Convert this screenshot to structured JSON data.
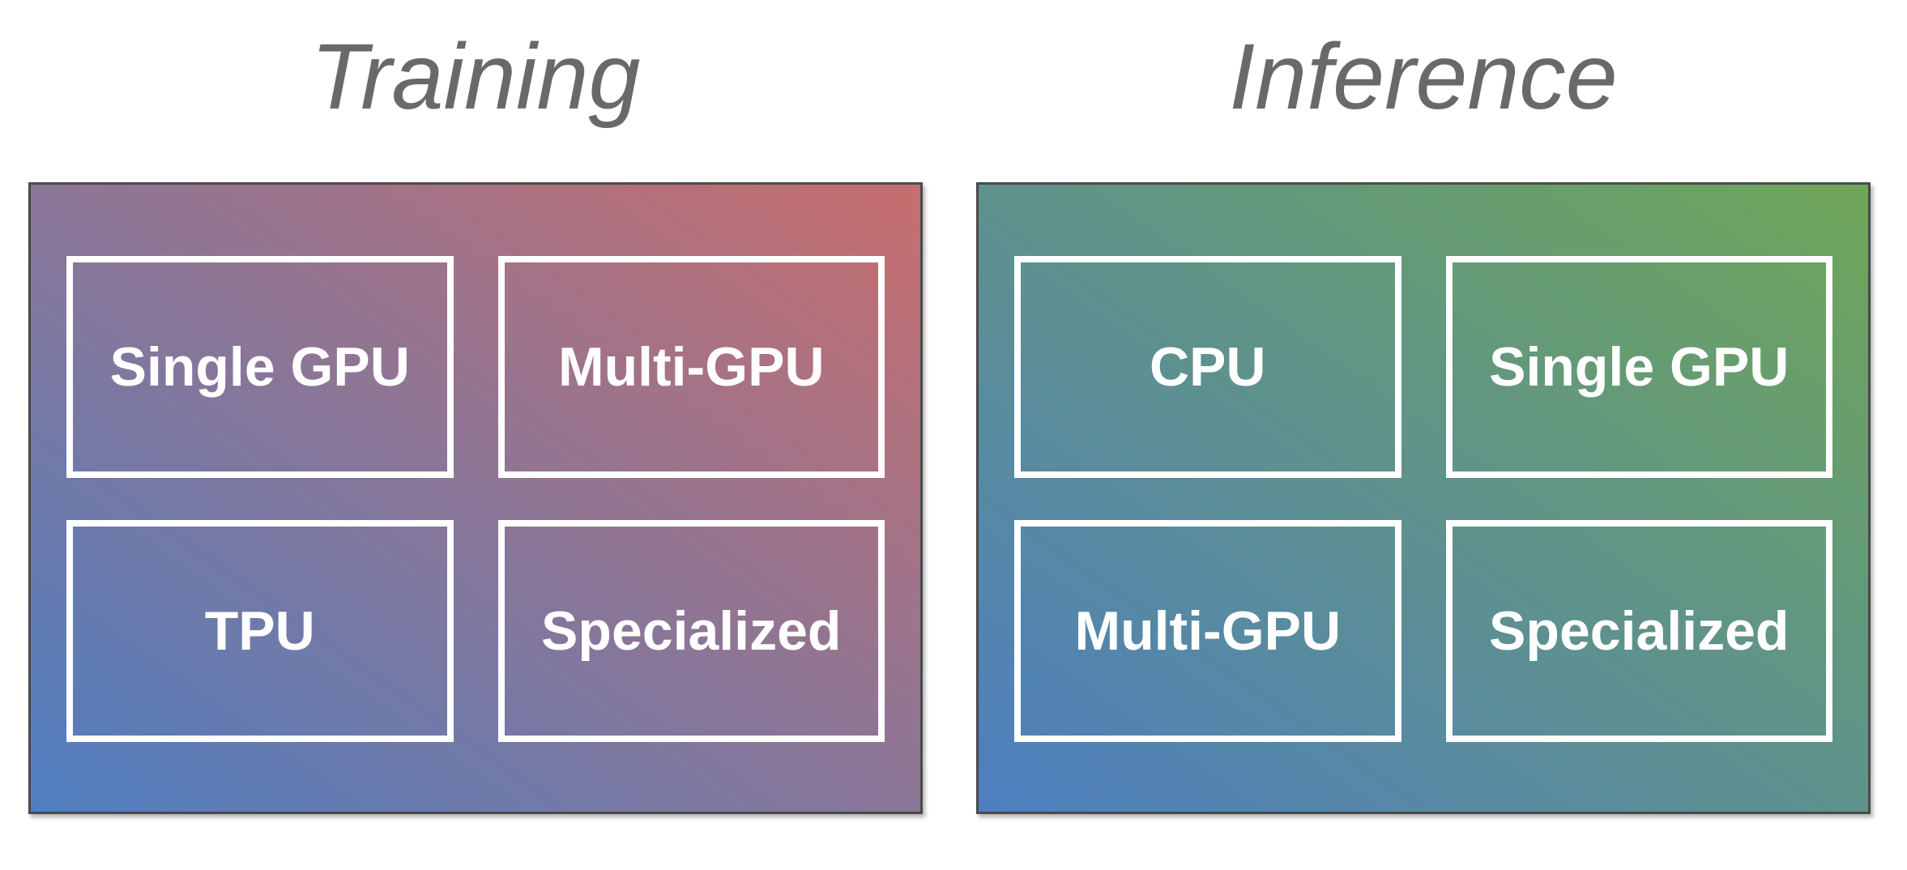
{
  "figure": {
    "description": "Two-panel hardware diagram comparing Training and Inference compute options"
  },
  "panels": [
    {
      "title": "Training",
      "gradient": {
        "from": "#4e7ec0",
        "to": "#c76e6e"
      },
      "boxes": [
        "Single GPU",
        "Multi-GPU",
        "TPU",
        "Specialized"
      ]
    },
    {
      "title": "Inference",
      "gradient": {
        "from": "#4e7ec0",
        "to": "#6fa658"
      },
      "boxes": [
        "CPU",
        "Single GPU",
        "Multi-GPU",
        "Specialized"
      ]
    }
  ],
  "colors": {
    "title": "#696969",
    "panel_border": "#4a4a4a",
    "box_border": "#ffffff",
    "label": "#ffffff",
    "background": "#ffffff"
  }
}
